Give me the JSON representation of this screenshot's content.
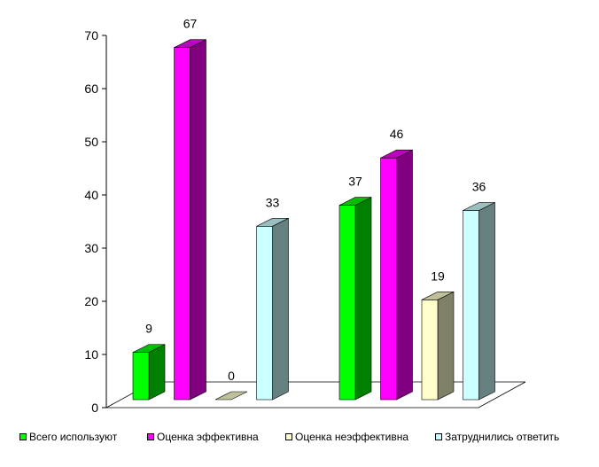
{
  "chart_data": {
    "type": "bar",
    "series": [
      {
        "name": "Всего используют",
        "color": "#00ff00",
        "values": [
          9,
          37
        ]
      },
      {
        "name": "Оценка эффективна",
        "color": "#ff00ff",
        "values": [
          67,
          46
        ]
      },
      {
        "name": "Оценка неэффективна",
        "color": "#ffffcc",
        "values": [
          0,
          19
        ]
      },
      {
        "name": "Затруднились ответить",
        "color": "#ccffff",
        "values": [
          33,
          36
        ]
      }
    ],
    "ylim": [
      0,
      70
    ],
    "yticks": [
      "0",
      "10",
      "20",
      "30",
      "40",
      "50",
      "60",
      "70"
    ],
    "legend_position": "bottom",
    "three_d": true
  }
}
